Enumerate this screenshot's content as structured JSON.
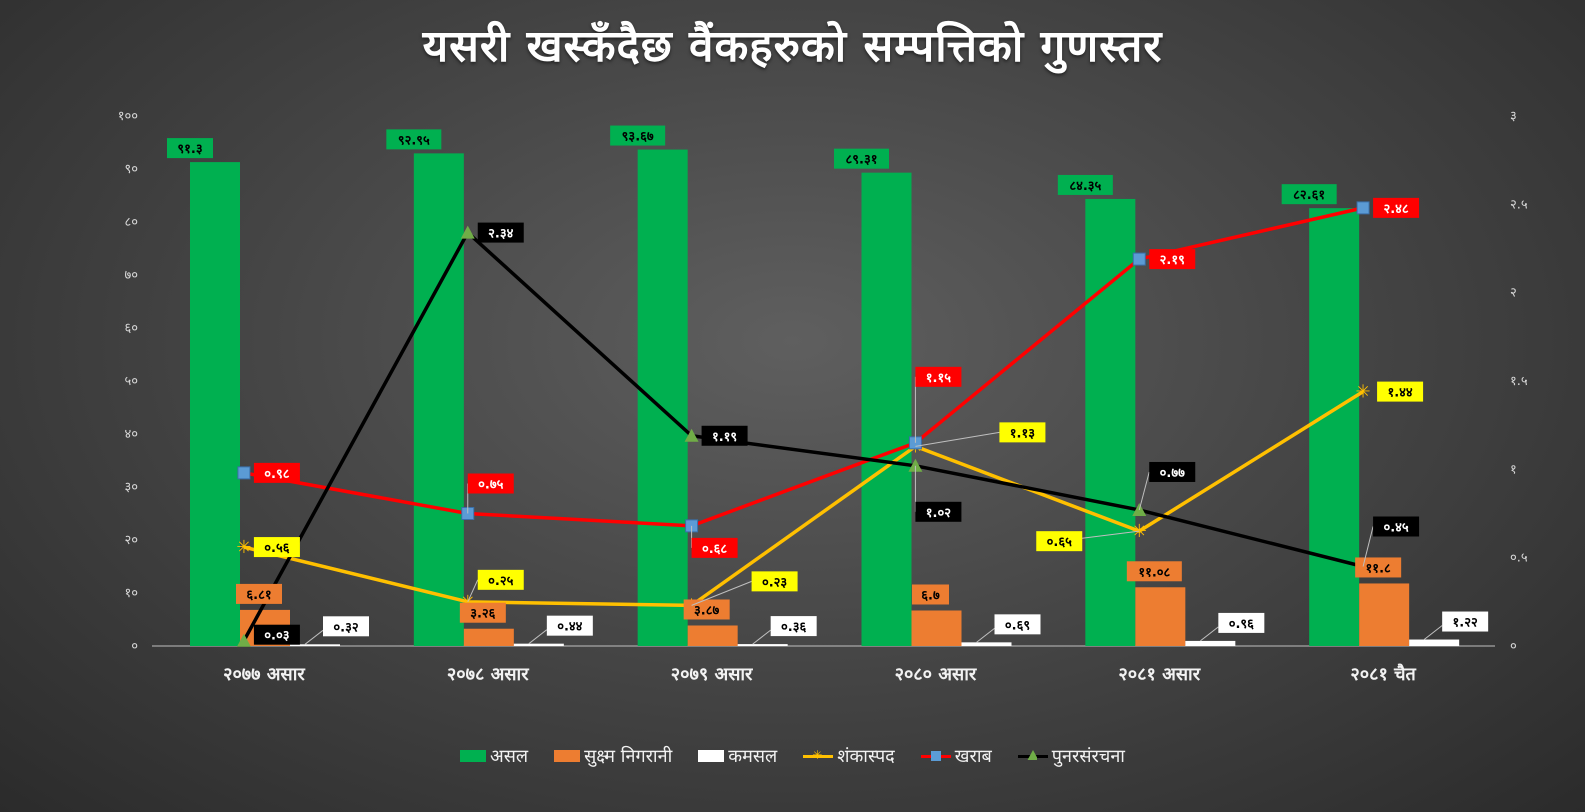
{
  "title": "यसरी खस्कँदैछ वैंकहरुको सम्पत्तिको गुणस्तर",
  "chart_data": {
    "type": "bar",
    "categories": [
      "२०७७ असार",
      "२०७८ असार",
      "२०७९ असार",
      "२०८० असार",
      "२०८१ असार",
      "२०८१ चैत"
    ],
    "left_axis": {
      "ylim": [
        0,
        100
      ],
      "ticks": [
        "०",
        "१०",
        "२०",
        "३०",
        "४०",
        "५०",
        "६०",
        "७०",
        "८०",
        "९०",
        "१००"
      ]
    },
    "right_axis": {
      "ylim": [
        0,
        3
      ],
      "ticks": [
        "०",
        "०.५",
        "१",
        "१.५",
        "२",
        "२.५",
        "३"
      ]
    },
    "series": [
      {
        "name": "असल",
        "type": "bar",
        "axis": "left",
        "color": "#00b050",
        "values": [
          91.3,
          92.95,
          93.67,
          89.31,
          84.35,
          82.61
        ],
        "labels": [
          "९१.३",
          "९२.९५",
          "९३.६७",
          "८९.३१",
          "८४.३५",
          "८२.६१"
        ]
      },
      {
        "name": "सुक्ष्म निगरानी",
        "type": "bar",
        "axis": "left",
        "color": "#ed7d31",
        "values": [
          6.81,
          3.26,
          3.87,
          6.7,
          11.08,
          11.8
        ],
        "labels": [
          "६.८१",
          "३.२६",
          "३.८७",
          "६.७",
          "११.०८",
          "११.८"
        ]
      },
      {
        "name": "कमसल",
        "type": "bar",
        "axis": "left",
        "color": "#ffffff",
        "values": [
          0.32,
          0.44,
          0.36,
          0.69,
          0.96,
          1.22
        ],
        "labels": [
          "०.३२",
          "०.४४",
          "०.३६",
          "०.६९",
          "०.९६",
          "१.२२"
        ]
      },
      {
        "name": "शंकास्पद",
        "type": "line",
        "axis": "right",
        "color": "#ffc000",
        "marker": "star",
        "values": [
          0.56,
          0.25,
          0.23,
          1.13,
          0.65,
          1.44
        ],
        "labels": [
          "०.५६",
          "०.२५",
          "०.२३",
          "१.१३",
          "०.६५",
          "१.४४"
        ]
      },
      {
        "name": "खराब",
        "type": "line",
        "axis": "right",
        "color": "#ff0000",
        "marker": "square",
        "values": [
          0.98,
          0.75,
          0.68,
          1.15,
          2.19,
          2.48
        ],
        "labels": [
          "०.९८",
          "०.७५",
          "०.६८",
          "१.१५",
          "२.१९",
          "२.४८"
        ]
      },
      {
        "name": "पुनरसंरचना",
        "type": "line",
        "axis": "right",
        "color": "#000000",
        "marker": "triangle",
        "values": [
          0.03,
          2.34,
          1.19,
          1.02,
          0.77,
          0.45
        ],
        "labels": [
          "०.०३",
          "२.३४",
          "१.१९",
          "१.०२",
          "०.७७",
          "०.४५"
        ]
      }
    ],
    "legend_position": "bottom",
    "grid": false
  }
}
